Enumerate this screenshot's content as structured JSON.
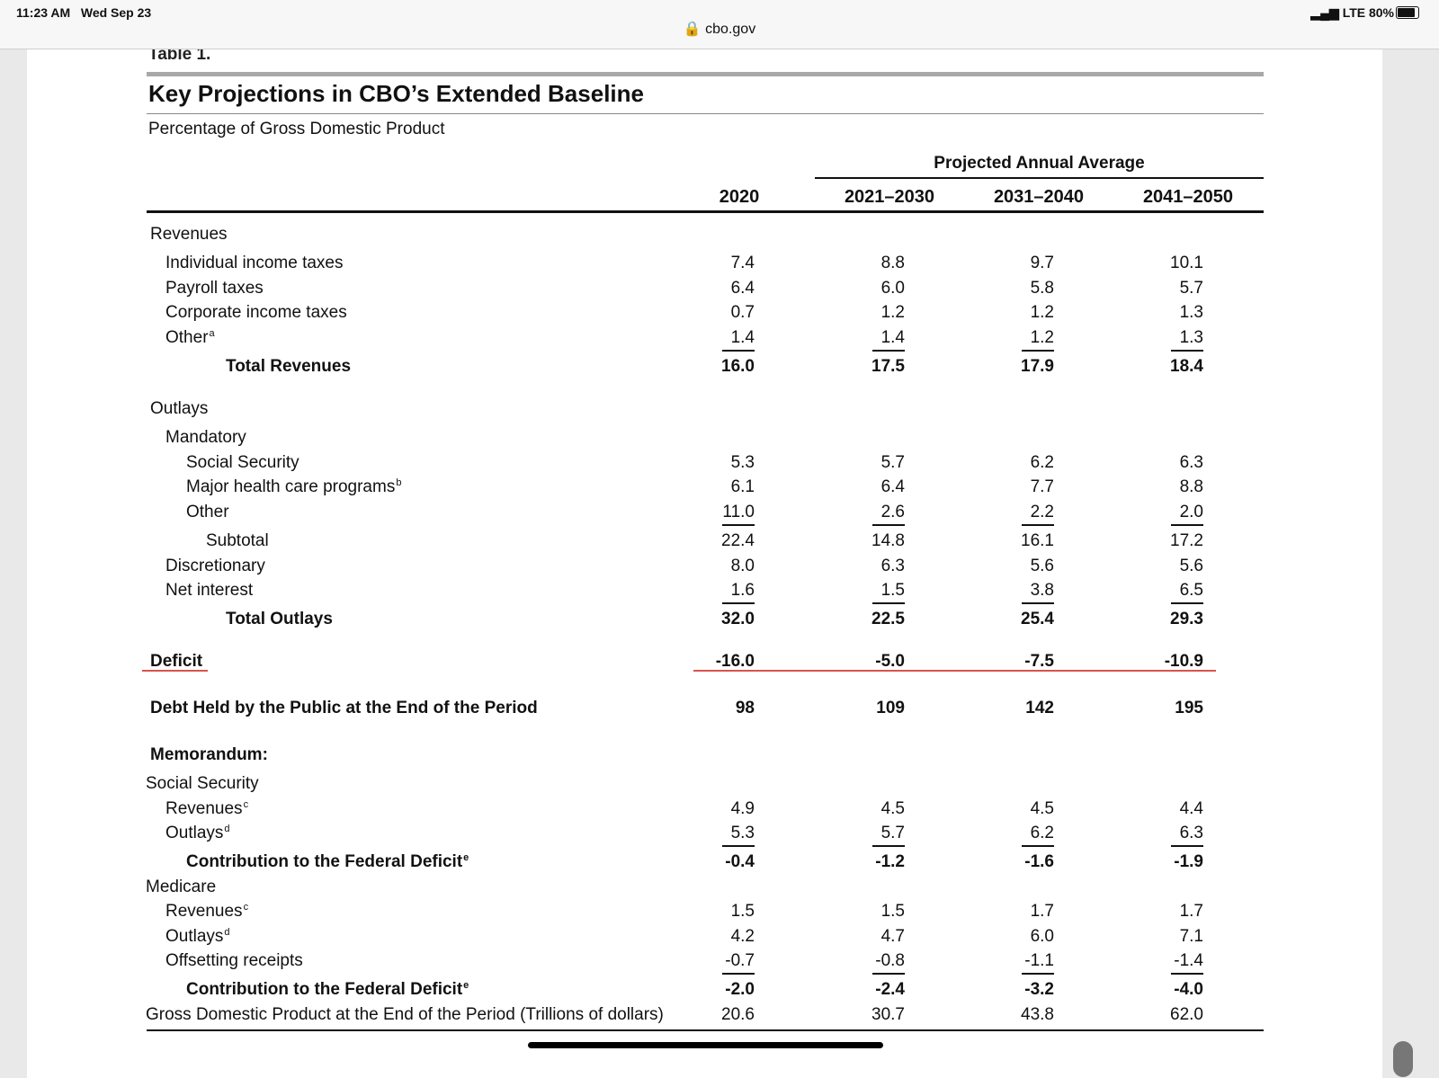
{
  "status_bar": {
    "time": "11:23 AM",
    "date": "Wed Sep 23",
    "signal": "LTE 80%",
    "battery_level": 0.8
  },
  "browser": {
    "url": "cbo.gov"
  },
  "table": {
    "label": "Table 1.",
    "title": "Key Projections in CBO’s Extended Baseline",
    "subtitle": "Percentage of Gross Domestic Product",
    "group_header": "Projected Annual Average",
    "columns": [
      "2020",
      "2021–2030",
      "2031–2040",
      "2041–2050"
    ],
    "rows": [
      {
        "label": "Revenues",
        "indent": 0,
        "values": []
      },
      {
        "label": "Individual income taxes",
        "indent": 1,
        "values": [
          "7.4",
          "8.8",
          "9.7",
          "10.1"
        ]
      },
      {
        "label": "Payroll taxes",
        "indent": 1,
        "values": [
          "6.4",
          "6.0",
          "5.8",
          "5.7"
        ]
      },
      {
        "label": "Corporate income taxes",
        "indent": 1,
        "values": [
          "0.7",
          "1.2",
          "1.2",
          "1.3"
        ]
      },
      {
        "label": "Other",
        "sup": "a",
        "indent": 1,
        "values": [
          "1.4",
          "1.4",
          "1.2",
          "1.3"
        ]
      },
      {
        "label": "Total Revenues",
        "indent": 3,
        "bold": true,
        "line": true,
        "values": [
          "16.0",
          "17.5",
          "17.9",
          "18.4"
        ]
      },
      {
        "label": "Outlays",
        "indent": 0,
        "values": []
      },
      {
        "label": "Mandatory",
        "indent": 1,
        "values": []
      },
      {
        "label": "Social Security",
        "indent": 2,
        "values": [
          "5.3",
          "5.7",
          "6.2",
          "6.3"
        ]
      },
      {
        "label": "Major health care programs",
        "sup": "b",
        "indent": 2,
        "values": [
          "6.1",
          "6.4",
          "7.7",
          "8.8"
        ]
      },
      {
        "label": "Other",
        "indent": 2,
        "values": [
          "11.0",
          "2.6",
          "2.2",
          "2.0"
        ]
      },
      {
        "label": "Subtotal",
        "indent": 4,
        "line": true,
        "values": [
          "22.4",
          "14.8",
          "16.1",
          "17.2"
        ]
      },
      {
        "label": "Discretionary",
        "indent": 1,
        "values": [
          "8.0",
          "6.3",
          "5.6",
          "5.6"
        ]
      },
      {
        "label": "Net interest",
        "indent": 1,
        "values": [
          "1.6",
          "1.5",
          "3.8",
          "6.5"
        ]
      },
      {
        "label": "Total Outlays",
        "indent": 3,
        "bold": true,
        "line": true,
        "values": [
          "32.0",
          "22.5",
          "25.4",
          "29.3"
        ]
      },
      {
        "label": "Deficit",
        "indent": 0,
        "bold": true,
        "values": [
          "-16.0",
          "-5.0",
          "-7.5",
          "-10.9"
        ]
      },
      {
        "label": "Debt Held by the Public at the End of the Period",
        "indent": 0,
        "bold": true,
        "values": [
          "98",
          "109",
          "142",
          "195"
        ]
      },
      {
        "label": "Memorandum:",
        "indent": 0,
        "bold": true,
        "values": []
      },
      {
        "label": "Social Security",
        "indent": -1,
        "values": []
      },
      {
        "label": "Revenues",
        "sup": "c",
        "indent": 1,
        "values": [
          "4.9",
          "4.5",
          "4.5",
          "4.4"
        ]
      },
      {
        "label": "Outlays",
        "sup": "d",
        "indent": 1,
        "values": [
          "5.3",
          "5.7",
          "6.2",
          "6.3"
        ]
      },
      {
        "label": "Contribution to the Federal Deficit",
        "sup": "e",
        "indent": 2,
        "bold": true,
        "line": true,
        "values": [
          "-0.4",
          "-1.2",
          "-1.6",
          "-1.9"
        ]
      },
      {
        "label": "Medicare",
        "indent": -1,
        "values": []
      },
      {
        "label": "Revenues",
        "sup": "c",
        "indent": 1,
        "values": [
          "1.5",
          "1.5",
          "1.7",
          "1.7"
        ]
      },
      {
        "label": "Outlays",
        "sup": "d",
        "indent": 1,
        "values": [
          "4.2",
          "4.7",
          "6.0",
          "7.1"
        ]
      },
      {
        "label": "Offsetting receipts",
        "indent": 1,
        "values": [
          "-0.7",
          "-0.8",
          "-1.1",
          "-1.4"
        ]
      },
      {
        "label": "Contribution to the Federal Deficit",
        "sup": "e",
        "indent": 2,
        "bold": true,
        "line": true,
        "values": [
          "-2.0",
          "-2.4",
          "-3.2",
          "-4.0"
        ]
      },
      {
        "label": "Gross Domestic Product at the End of the Period (Trillions of dollars)",
        "indent": -1,
        "values": [
          "20.6",
          "30.7",
          "43.8",
          "62.0"
        ]
      }
    ]
  },
  "colors": {
    "highlight_underline": "#d9534f",
    "rule": "#111111",
    "grey_bar": "#a8a8a8"
  }
}
